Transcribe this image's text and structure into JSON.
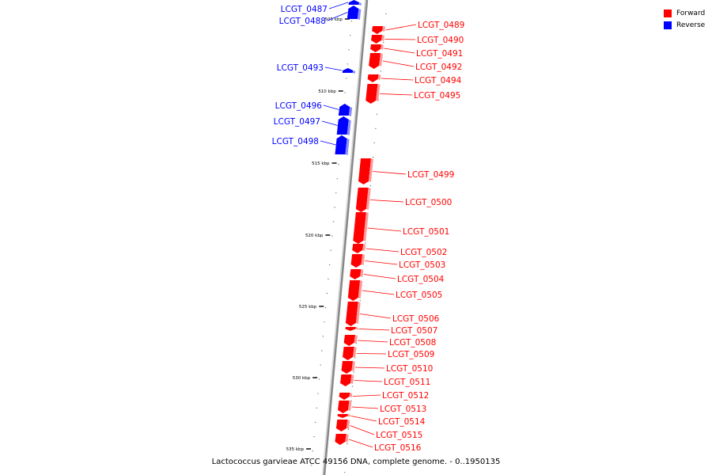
{
  "caption": "Lactococcus garvieae ATCC 49156 DNA, complete genome. - 0..1950135",
  "legend": [
    {
      "label": "Forward",
      "color": "#ff0000",
      "icon": "red-square"
    },
    {
      "label": "Reverse",
      "color": "#0000ff",
      "icon": "blue-square"
    }
  ],
  "colors": {
    "forward": "#ff0000",
    "forward_shade": "#ff9a9a",
    "reverse": "#0000ff",
    "reverse_shade": "#8a8aff",
    "backbone": "#888888"
  },
  "kbp_marks": [
    {
      "label": "505 kbp",
      "kbp": 505
    },
    {
      "label": "510 kbp",
      "kbp": 510
    },
    {
      "label": "515 kbp",
      "kbp": 515
    },
    {
      "label": "520 kbp",
      "kbp": 520
    },
    {
      "label": "525 kbp",
      "kbp": 525
    },
    {
      "label": "530 kbp",
      "kbp": 530
    },
    {
      "label": "535 kbp",
      "kbp": 535
    }
  ],
  "genes": [
    {
      "name": "LCGT_0487",
      "strand": "reverse"
    },
    {
      "name": "LCGT_0488",
      "strand": "reverse"
    },
    {
      "name": "LCGT_0489",
      "strand": "forward"
    },
    {
      "name": "LCGT_0490",
      "strand": "forward"
    },
    {
      "name": "LCGT_0491",
      "strand": "forward"
    },
    {
      "name": "LCGT_0492",
      "strand": "forward"
    },
    {
      "name": "LCGT_0493",
      "strand": "reverse"
    },
    {
      "name": "LCGT_0494",
      "strand": "forward"
    },
    {
      "name": "LCGT_0495",
      "strand": "forward"
    },
    {
      "name": "LCGT_0496",
      "strand": "reverse"
    },
    {
      "name": "LCGT_0497",
      "strand": "reverse"
    },
    {
      "name": "LCGT_0498",
      "strand": "reverse"
    },
    {
      "name": "LCGT_0499",
      "strand": "forward"
    },
    {
      "name": "LCGT_0500",
      "strand": "forward"
    },
    {
      "name": "LCGT_0501",
      "strand": "forward"
    },
    {
      "name": "LCGT_0502",
      "strand": "forward"
    },
    {
      "name": "LCGT_0503",
      "strand": "forward"
    },
    {
      "name": "LCGT_0504",
      "strand": "forward"
    },
    {
      "name": "LCGT_0505",
      "strand": "forward"
    },
    {
      "name": "LCGT_0506",
      "strand": "forward"
    },
    {
      "name": "LCGT_0507",
      "strand": "forward"
    },
    {
      "name": "LCGT_0508",
      "strand": "forward"
    },
    {
      "name": "LCGT_0509",
      "strand": "forward"
    },
    {
      "name": "LCGT_0510",
      "strand": "forward"
    },
    {
      "name": "LCGT_0511",
      "strand": "forward"
    },
    {
      "name": "LCGT_0512",
      "strand": "forward"
    },
    {
      "name": "LCGT_0513",
      "strand": "forward"
    },
    {
      "name": "LCGT_0514",
      "strand": "forward"
    },
    {
      "name": "LCGT_0515",
      "strand": "forward"
    },
    {
      "name": "LCGT_0516",
      "strand": "forward"
    }
  ]
}
